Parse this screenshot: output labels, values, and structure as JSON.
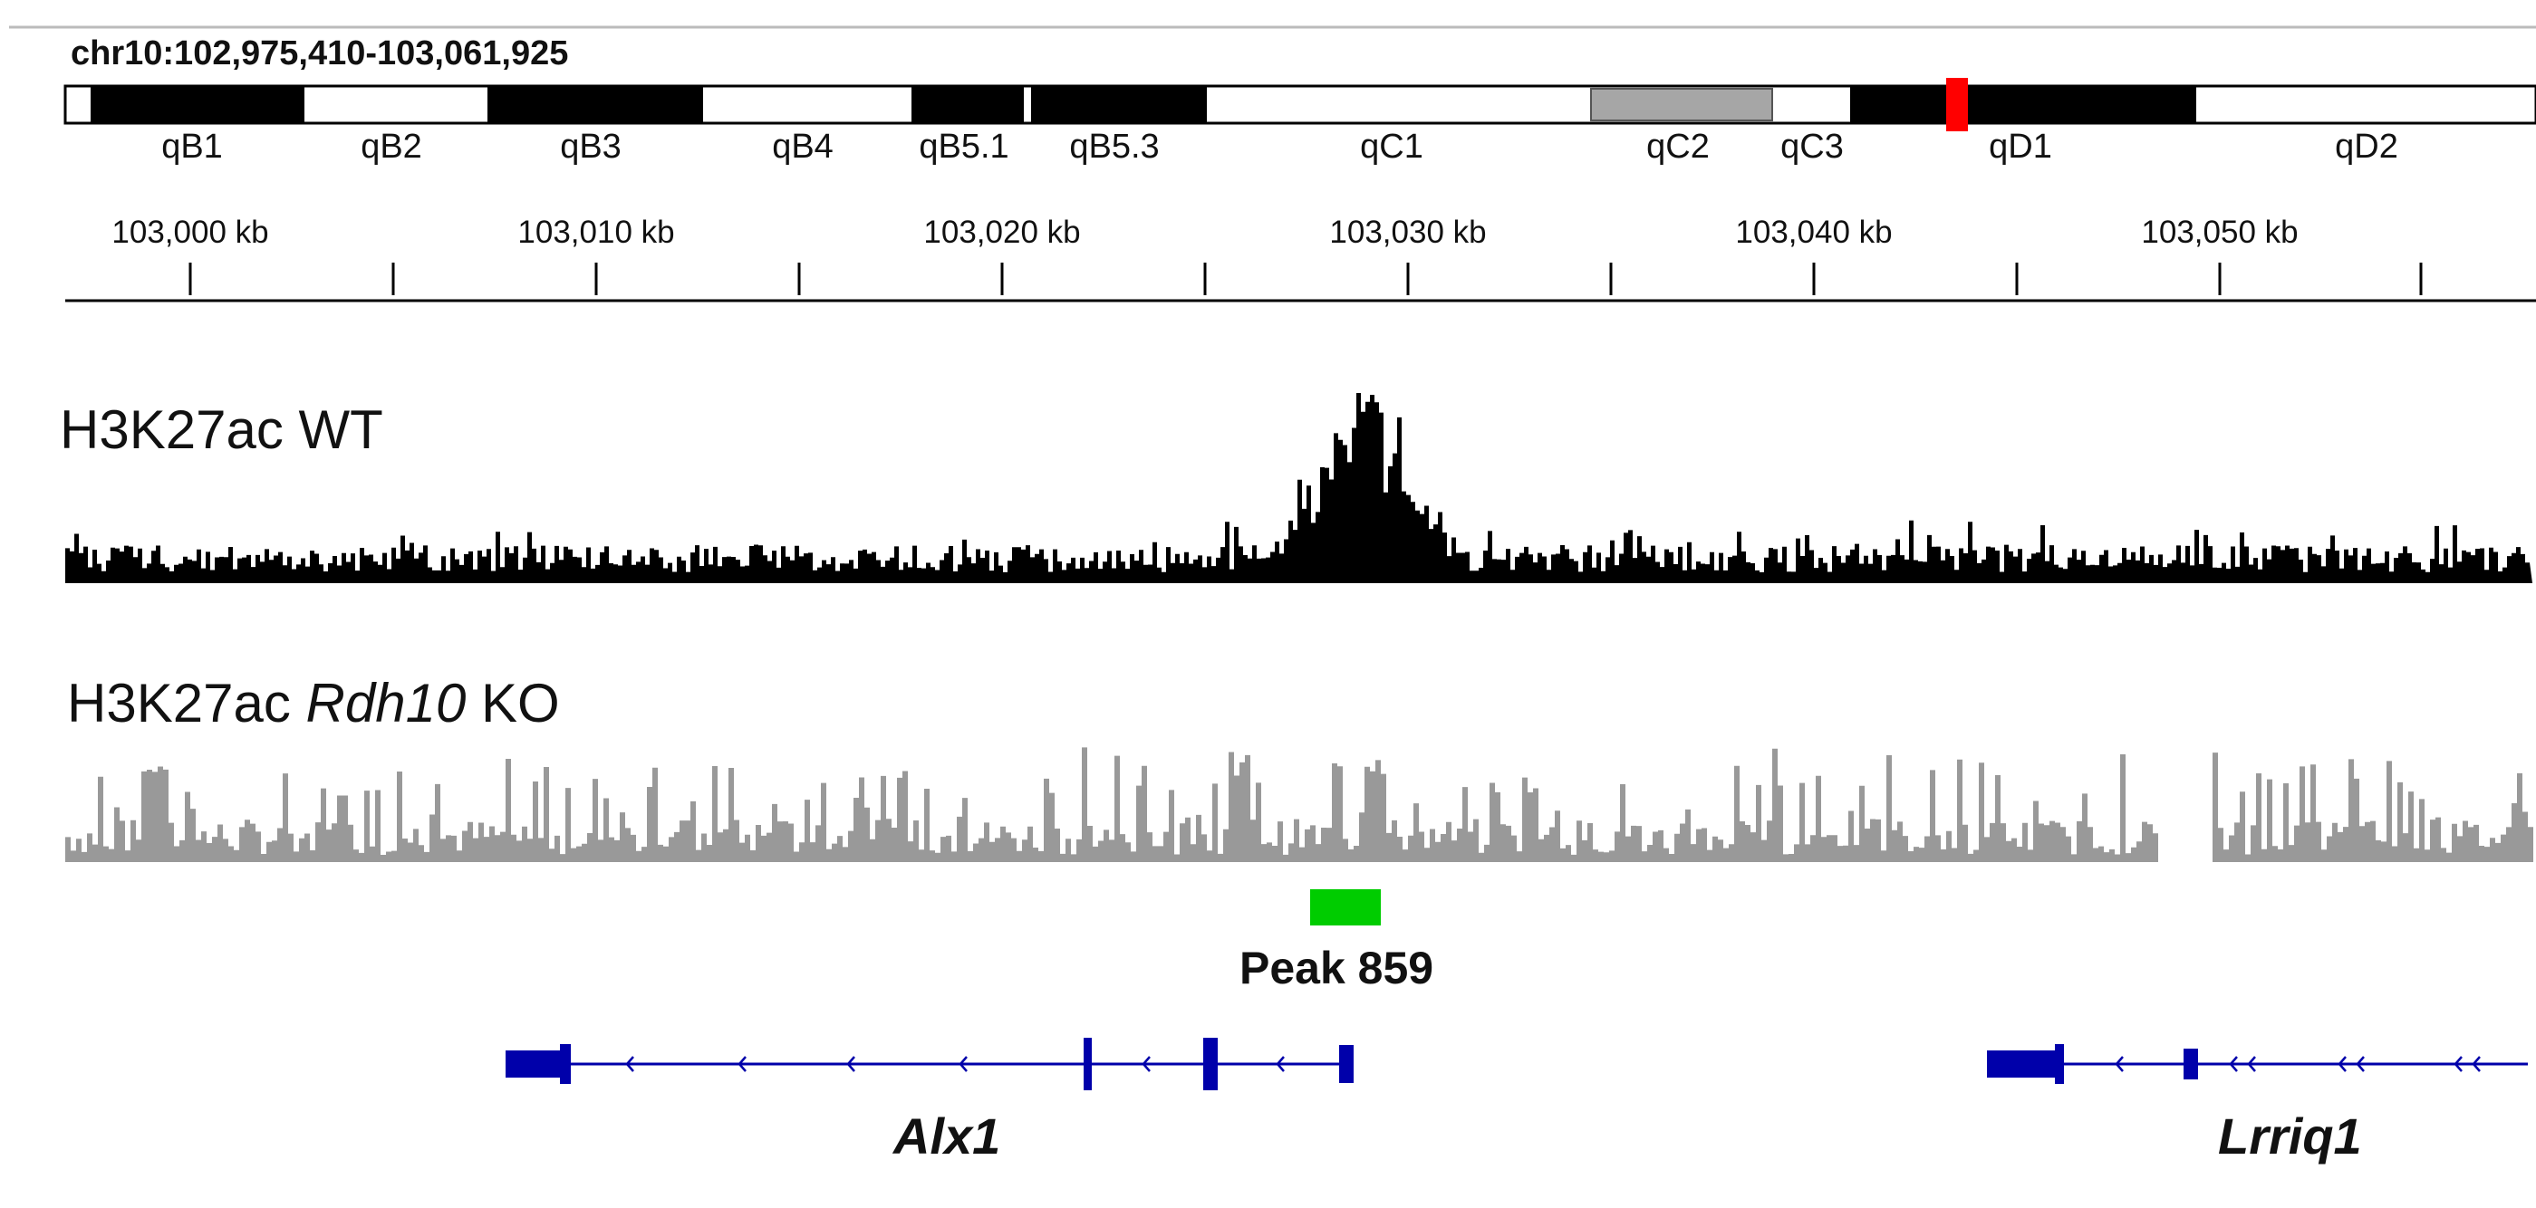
{
  "locus": "chr10:102,975,410-103,061,925",
  "ideogram": {
    "bands": [
      {
        "name": "qB1",
        "stain": "black"
      },
      {
        "name": "qB2",
        "stain": "white"
      },
      {
        "name": "qB3",
        "stain": "black"
      },
      {
        "name": "qB4",
        "stain": "white"
      },
      {
        "name": "qB5.1",
        "stain": "black"
      },
      {
        "name": "qB5.3",
        "stain": "black"
      },
      {
        "name": "qC1",
        "stain": "white"
      },
      {
        "name": "qC2",
        "stain": "gray"
      },
      {
        "name": "qC3",
        "stain": "white"
      },
      {
        "name": "qD1",
        "stain": "black"
      },
      {
        "name": "qD2",
        "stain": "white"
      }
    ],
    "highlight_color": "#ff0000"
  },
  "ruler": {
    "labels": [
      "103,000 kb",
      "103,010 kb",
      "103,020 kb",
      "103,030 kb",
      "103,040 kb",
      "103,050 kb"
    ]
  },
  "tracks": {
    "wt": {
      "title": "H3K27ac WT",
      "color": "#000000"
    },
    "ko": {
      "title_prefix": "H3K27ac ",
      "title_gene": "Rdh10",
      "title_suffix": " KO",
      "color": "#999999"
    }
  },
  "peak": {
    "label": "Peak 859",
    "color": "#00cc00"
  },
  "genes": [
    {
      "name": "Alx1",
      "strand": "-",
      "color": "#0000aa"
    },
    {
      "name": "Lrriq1",
      "strand": "-",
      "color": "#0000aa"
    }
  ]
}
